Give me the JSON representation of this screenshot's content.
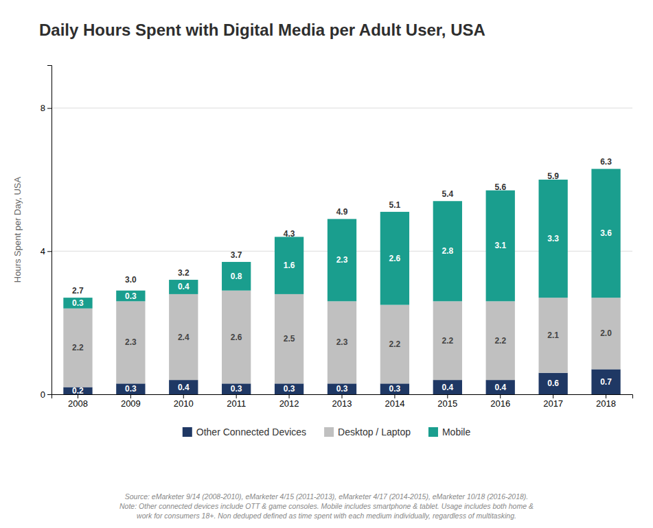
{
  "chart_data": {
    "type": "bar",
    "stacked": true,
    "title": "Daily Hours Spent with Digital Media per Adult User, USA",
    "y_label": "Hours Spent per Day, USA",
    "categories": [
      "2008",
      "2009",
      "2010",
      "2011",
      "2012",
      "2013",
      "2014",
      "2015",
      "2016",
      "2017",
      "2018"
    ],
    "series": [
      {
        "name": "Other Connected Devices",
        "color": "#1f3864",
        "values": [
          0.2,
          0.3,
          0.4,
          0.3,
          0.3,
          0.3,
          0.3,
          0.4,
          0.4,
          0.6,
          0.7
        ],
        "value_labels": [
          "0.2",
          "0.3",
          "0.4",
          "0.3",
          "0.3",
          "0.3",
          "0.3",
          "0.4",
          "0.4",
          "0.6",
          "0.7"
        ]
      },
      {
        "name": "Desktop / Laptop",
        "color": "#c0c0c0",
        "values": [
          2.2,
          2.3,
          2.4,
          2.6,
          2.5,
          2.3,
          2.2,
          2.2,
          2.2,
          2.1,
          2.0
        ],
        "value_labels": [
          "2.2",
          "2.3",
          "2.4",
          "2.6",
          "2.5",
          "2.3",
          "2.2",
          "2.2",
          "2.2",
          "2.1",
          "2.0"
        ]
      },
      {
        "name": "Mobile",
        "color": "#1a9e8e",
        "values": [
          0.3,
          0.3,
          0.4,
          0.8,
          1.6,
          2.3,
          2.6,
          2.8,
          3.1,
          3.3,
          3.6
        ],
        "value_labels": [
          "0.3",
          "0.3",
          "0.4",
          "0.8",
          "1.6",
          "2.3",
          "2.6",
          "2.8",
          "3.1",
          "3.3",
          "3.6"
        ]
      }
    ],
    "totals": [
      2.7,
      3.0,
      3.2,
      3.7,
      4.3,
      4.9,
      5.1,
      5.4,
      5.6,
      5.9,
      6.3
    ],
    "total_labels": [
      "2.7",
      "3.0",
      "3.2",
      "3.7",
      "4.3",
      "4.9",
      "5.1",
      "5.4",
      "5.6",
      "5.9",
      "6.3"
    ],
    "ylim": [
      0,
      9.2
    ],
    "yticks": [
      0,
      4,
      8
    ],
    "grid": true,
    "data_labels": true,
    "legend": "bottom",
    "annotations": [
      "Source: eMarketer 9/14 (2008-2010), eMarketer 4/15 (2011-2013), eMarketer 4/17 (2014-2015), eMarketer 10/18 (2016-2018).\nNote: Other connected devices include OTT & game consoles. Mobile includes smartphone & tablet. Usage includes both home &\nwork for consumers 18+. Non deduped defined as time spent with each medium individually, regardless of multitasking."
    ]
  }
}
